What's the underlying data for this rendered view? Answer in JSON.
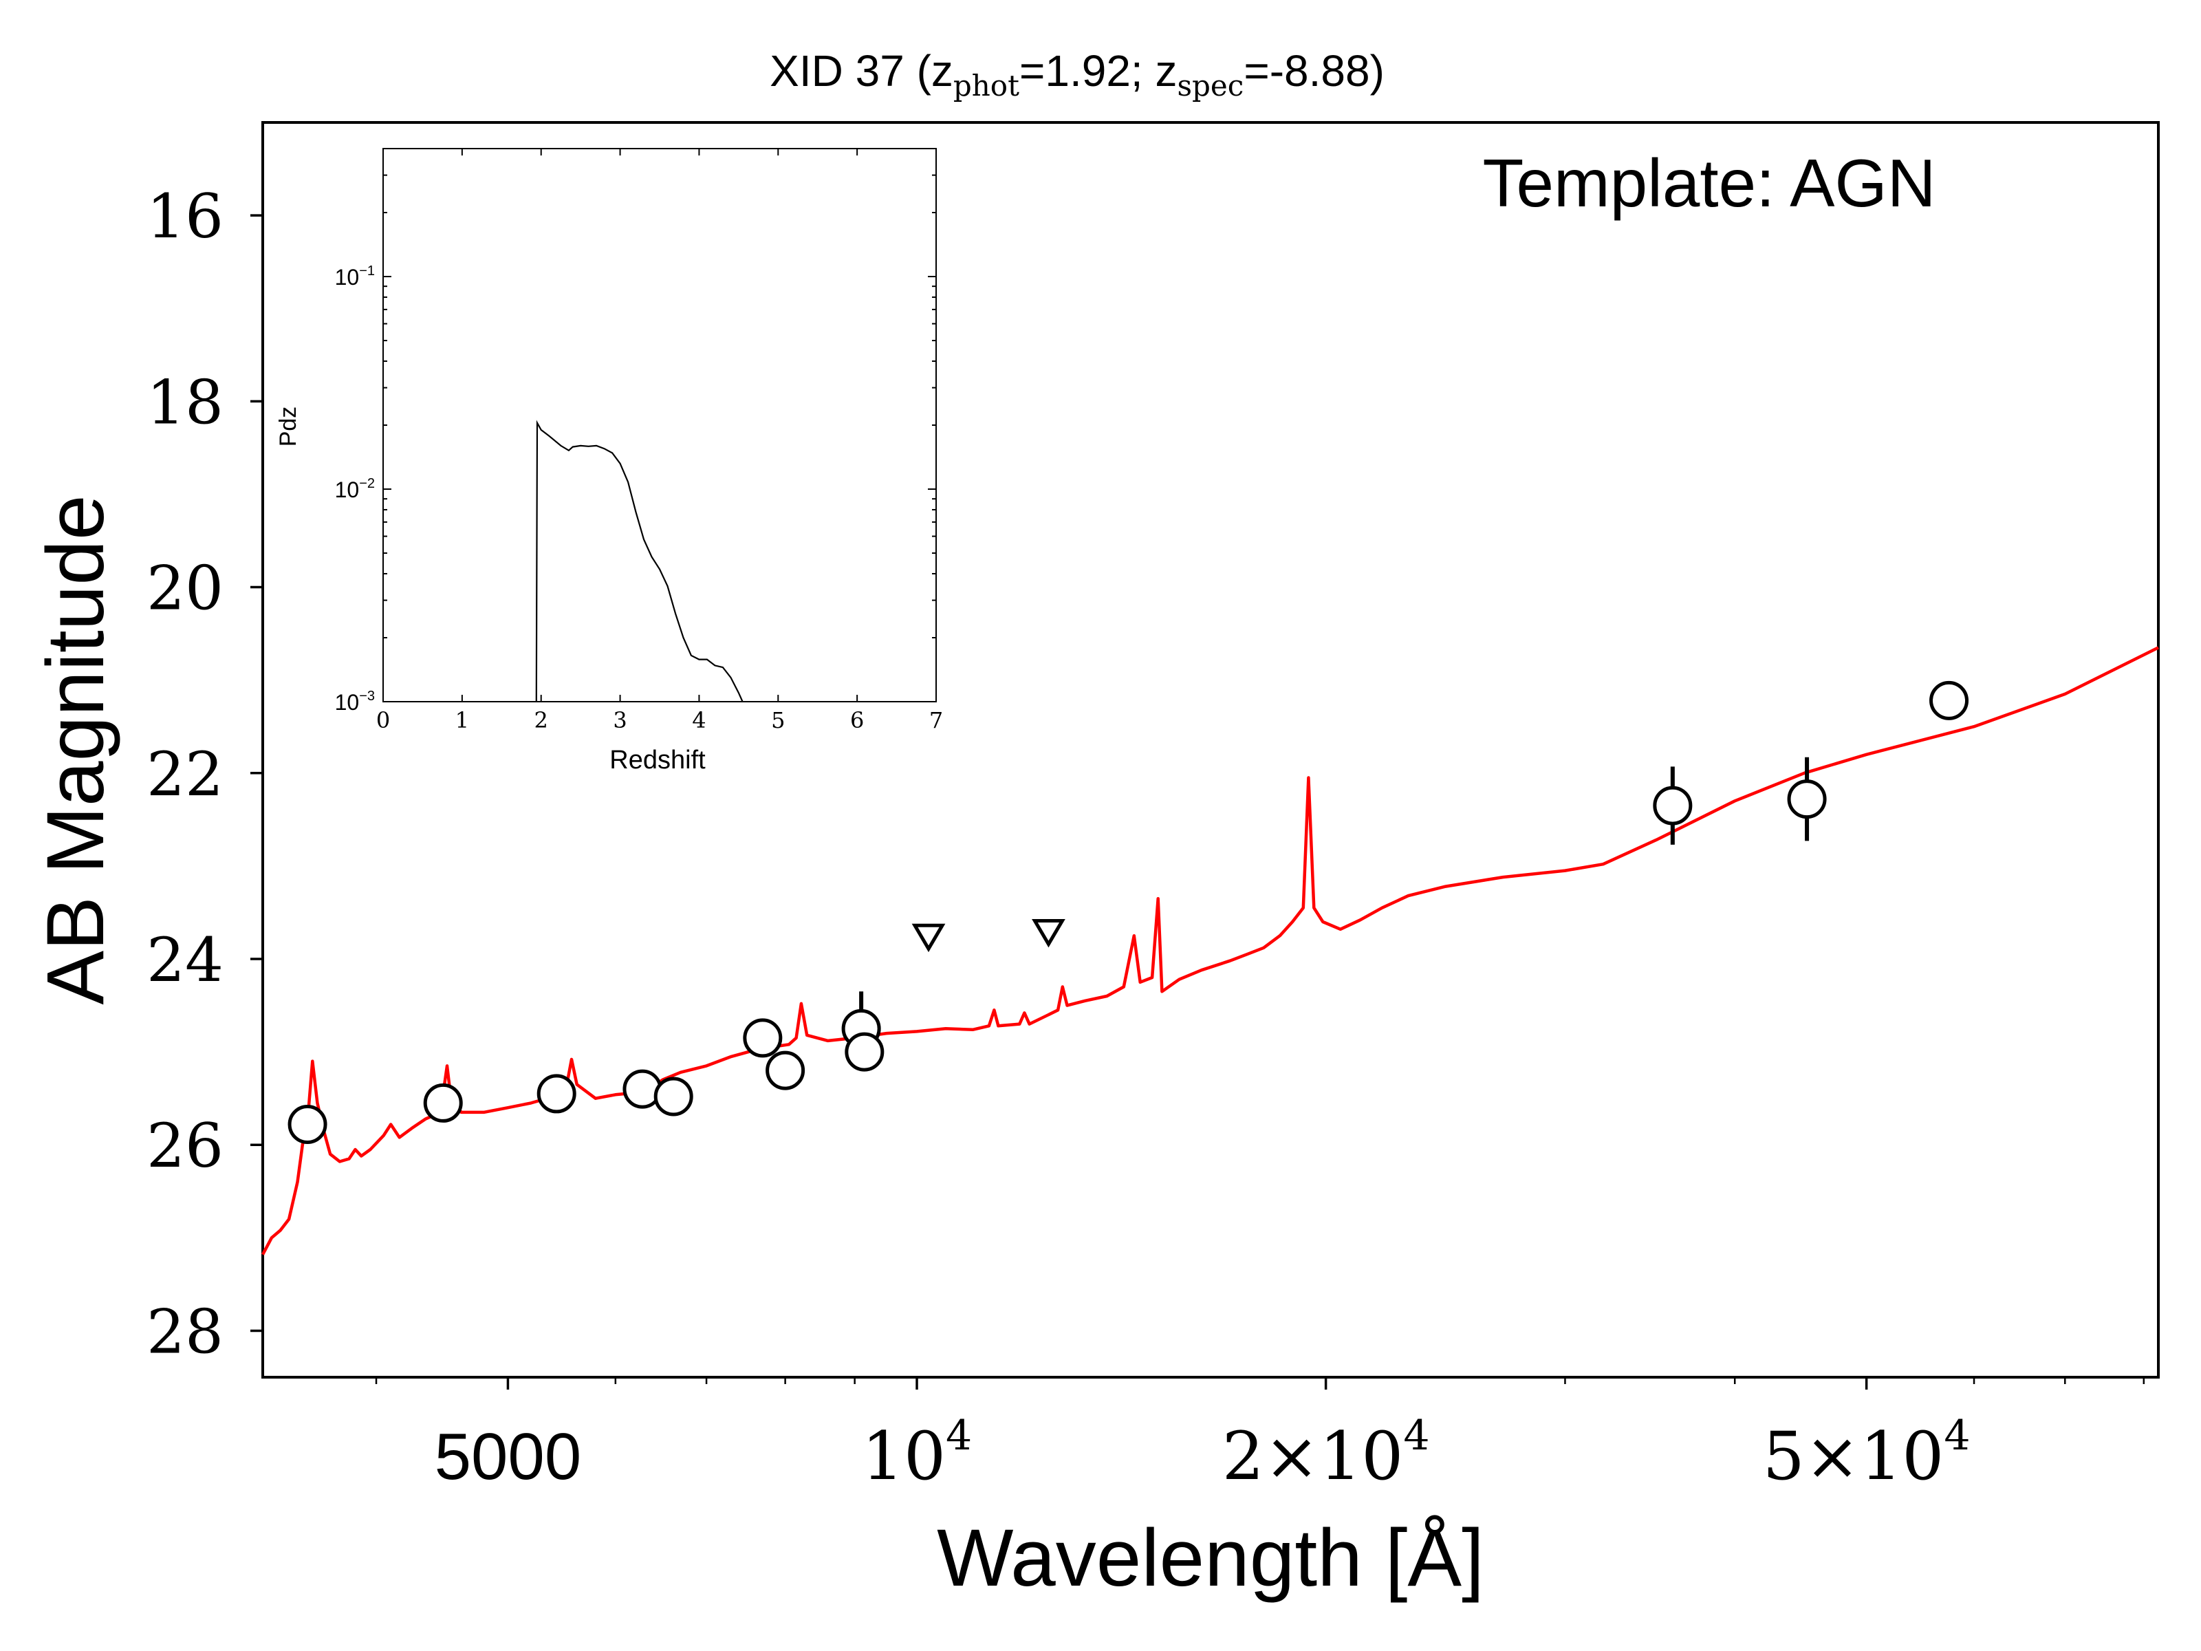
{
  "chart_data": {
    "type": "scatter",
    "title": {
      "prefix": "XID 37 (z",
      "phot_sub": "phot",
      "phot_val": "=1.92; z",
      "spec_sub": "spec",
      "spec_val": "=-8.88)"
    },
    "annotation": "Template: AGN",
    "xlabel": "Wavelength [Å]",
    "ylabel": "AB Magnitude",
    "xscale": "log",
    "xlim": [
      3300,
      82000
    ],
    "ylim": [
      28.5,
      15.0
    ],
    "y_inverted": true,
    "x_tick_labels": [
      {
        "value": 5000,
        "text": "5000"
      },
      {
        "value": 10000,
        "base": "10",
        "exp": "4"
      },
      {
        "value": 20000,
        "base": "2×10",
        "exp": "4"
      },
      {
        "value": 50000,
        "base": "5×10",
        "exp": "4"
      }
    ],
    "y_ticks": [
      16,
      18,
      20,
      22,
      24,
      26,
      28
    ],
    "photometry": [
      {
        "x": 3560,
        "y": 25.78,
        "yerr": 0
      },
      {
        "x": 4480,
        "y": 25.55,
        "yerr": 0
      },
      {
        "x": 5430,
        "y": 25.45,
        "yerr": 0
      },
      {
        "x": 6280,
        "y": 25.4,
        "yerr": 0
      },
      {
        "x": 6620,
        "y": 25.48,
        "yerr": 0
      },
      {
        "x": 7700,
        "y": 24.85,
        "yerr": 0
      },
      {
        "x": 8000,
        "y": 25.2,
        "yerr": 0
      },
      {
        "x": 9100,
        "y": 24.75,
        "yerr": 0.4
      },
      {
        "x": 9150,
        "y": 25.0,
        "yerr": 0
      },
      {
        "x": 36000,
        "y": 22.35,
        "yerr": 0.42
      },
      {
        "x": 45200,
        "y": 22.28,
        "yerr": 0.45
      },
      {
        "x": 57500,
        "y": 21.22,
        "yerr": 0
      }
    ],
    "upper_limits": [
      {
        "x": 10200,
        "y": 23.75
      },
      {
        "x": 12500,
        "y": 23.7
      }
    ],
    "model_sed": [
      [
        3300,
        27.18
      ],
      [
        3350,
        27.0
      ],
      [
        3400,
        26.92
      ],
      [
        3450,
        26.8
      ],
      [
        3500,
        26.4
      ],
      [
        3530,
        26.0
      ],
      [
        3560,
        25.75
      ],
      [
        3590,
        25.1
      ],
      [
        3620,
        25.55
      ],
      [
        3660,
        25.85
      ],
      [
        3700,
        26.1
      ],
      [
        3760,
        26.18
      ],
      [
        3820,
        26.15
      ],
      [
        3860,
        26.05
      ],
      [
        3900,
        26.12
      ],
      [
        3960,
        26.05
      ],
      [
        4050,
        25.9
      ],
      [
        4100,
        25.78
      ],
      [
        4160,
        25.92
      ],
      [
        4250,
        25.82
      ],
      [
        4350,
        25.72
      ],
      [
        4460,
        25.65
      ],
      [
        4510,
        25.15
      ],
      [
        4540,
        25.5
      ],
      [
        4620,
        25.65
      ],
      [
        4800,
        25.65
      ],
      [
        5000,
        25.6
      ],
      [
        5200,
        25.55
      ],
      [
        5400,
        25.48
      ],
      [
        5520,
        25.38
      ],
      [
        5570,
        25.08
      ],
      [
        5620,
        25.35
      ],
      [
        5800,
        25.5
      ],
      [
        6000,
        25.46
      ],
      [
        6300,
        25.43
      ],
      [
        6500,
        25.3
      ],
      [
        6700,
        25.22
      ],
      [
        7000,
        25.15
      ],
      [
        7300,
        25.05
      ],
      [
        7600,
        24.98
      ],
      [
        7800,
        24.95
      ],
      [
        8050,
        24.92
      ],
      [
        8150,
        24.85
      ],
      [
        8220,
        24.48
      ],
      [
        8300,
        24.82
      ],
      [
        8600,
        24.88
      ],
      [
        9000,
        24.85
      ],
      [
        9500,
        24.8
      ],
      [
        10000,
        24.78
      ],
      [
        10500,
        24.75
      ],
      [
        11000,
        24.76
      ],
      [
        11300,
        24.72
      ],
      [
        11400,
        24.55
      ],
      [
        11480,
        24.72
      ],
      [
        11900,
        24.7
      ],
      [
        12000,
        24.58
      ],
      [
        12100,
        24.7
      ],
      [
        12500,
        24.6
      ],
      [
        12700,
        24.55
      ],
      [
        12800,
        24.3
      ],
      [
        12900,
        24.5
      ],
      [
        13300,
        24.45
      ],
      [
        13800,
        24.4
      ],
      [
        14200,
        24.3
      ],
      [
        14450,
        23.75
      ],
      [
        14600,
        24.25
      ],
      [
        14900,
        24.2
      ],
      [
        15050,
        23.35
      ],
      [
        15150,
        24.35
      ],
      [
        15600,
        24.22
      ],
      [
        16200,
        24.12
      ],
      [
        17000,
        24.02
      ],
      [
        17500,
        23.95
      ],
      [
        18000,
        23.88
      ],
      [
        18500,
        23.75
      ],
      [
        18900,
        23.6
      ],
      [
        19250,
        23.45
      ],
      [
        19420,
        22.05
      ],
      [
        19600,
        23.45
      ],
      [
        19900,
        23.6
      ],
      [
        20500,
        23.68
      ],
      [
        21200,
        23.58
      ],
      [
        22000,
        23.45
      ],
      [
        23000,
        23.32
      ],
      [
        24500,
        23.22
      ],
      [
        27000,
        23.12
      ],
      [
        30000,
        23.05
      ],
      [
        32000,
        22.98
      ],
      [
        35000,
        22.72
      ],
      [
        40000,
        22.3
      ],
      [
        45000,
        22.0
      ],
      [
        50000,
        21.8
      ],
      [
        60000,
        21.5
      ],
      [
        70000,
        21.15
      ],
      [
        82000,
        20.65
      ]
    ],
    "inset": {
      "xlabel": "Redshift",
      "ylabel": "Pdz",
      "xlim": [
        0,
        7
      ],
      "yscale": "log",
      "ylim": [
        0.001,
        0.4
      ],
      "x_ticks": [
        0,
        1,
        2,
        3,
        4,
        5,
        6,
        7
      ],
      "y_tick_labels": [
        {
          "value": 0.1,
          "base": "10",
          "exp": "−1"
        },
        {
          "value": 0.01,
          "base": "10",
          "exp": "−2"
        },
        {
          "value": 0.001,
          "base": "10",
          "exp": "−3"
        }
      ],
      "curve": [
        [
          1.94,
          0.001
        ],
        [
          1.95,
          0.0205
        ],
        [
          2.0,
          0.019
        ],
        [
          2.1,
          0.0178
        ],
        [
          2.25,
          0.016
        ],
        [
          2.35,
          0.0152
        ],
        [
          2.4,
          0.0158
        ],
        [
          2.5,
          0.016
        ],
        [
          2.6,
          0.0159
        ],
        [
          2.7,
          0.016
        ],
        [
          2.8,
          0.0155
        ],
        [
          2.9,
          0.0148
        ],
        [
          3.0,
          0.0132
        ],
        [
          3.1,
          0.0108
        ],
        [
          3.2,
          0.0078
        ],
        [
          3.3,
          0.0058
        ],
        [
          3.4,
          0.0048
        ],
        [
          3.5,
          0.0042
        ],
        [
          3.6,
          0.0035
        ],
        [
          3.7,
          0.0026
        ],
        [
          3.8,
          0.002
        ],
        [
          3.9,
          0.00165
        ],
        [
          4.0,
          0.00158
        ],
        [
          4.1,
          0.00158
        ],
        [
          4.2,
          0.00148
        ],
        [
          4.3,
          0.00145
        ],
        [
          4.4,
          0.0013
        ],
        [
          4.5,
          0.0011
        ],
        [
          4.55,
          0.001
        ]
      ]
    },
    "colors": {
      "model": "#ff0000",
      "points": "#000000",
      "axes": "#000000"
    }
  }
}
